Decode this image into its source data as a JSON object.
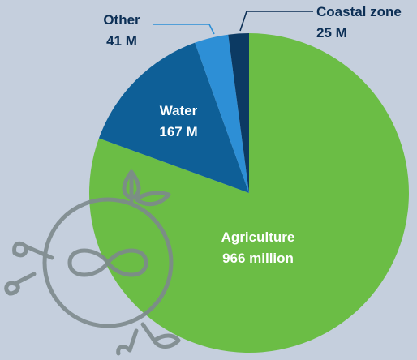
{
  "chart_data": {
    "type": "pie",
    "title": "",
    "start_angle_deg": 0,
    "direction": "clockwise",
    "slices": [
      {
        "key": "agriculture",
        "name": "Agriculture",
        "value_text": "966 million",
        "value": 966,
        "color": "#6bbd45"
      },
      {
        "key": "water",
        "name": "Water",
        "value_text": "167 M",
        "value": 167,
        "color": "#0e5f97"
      },
      {
        "key": "other",
        "name": "Other",
        "value_text": "41 M",
        "value": 41,
        "color": "#2d8fd6"
      },
      {
        "key": "coastal",
        "name": "Coastal zone",
        "value_text": "25 M",
        "value": 25,
        "color": "#0c3a63"
      }
    ],
    "unit": "million"
  },
  "colors": {
    "background": "#c5cfdd",
    "label_dark": "#0c2f55",
    "label_light": "#ffffff",
    "leader_other": "#2d8fd6",
    "leader_coastal": "#0c2f55",
    "logo": "#7d8a8d"
  },
  "decoration": {
    "logo_icon": "infinity-sprout-icon"
  }
}
